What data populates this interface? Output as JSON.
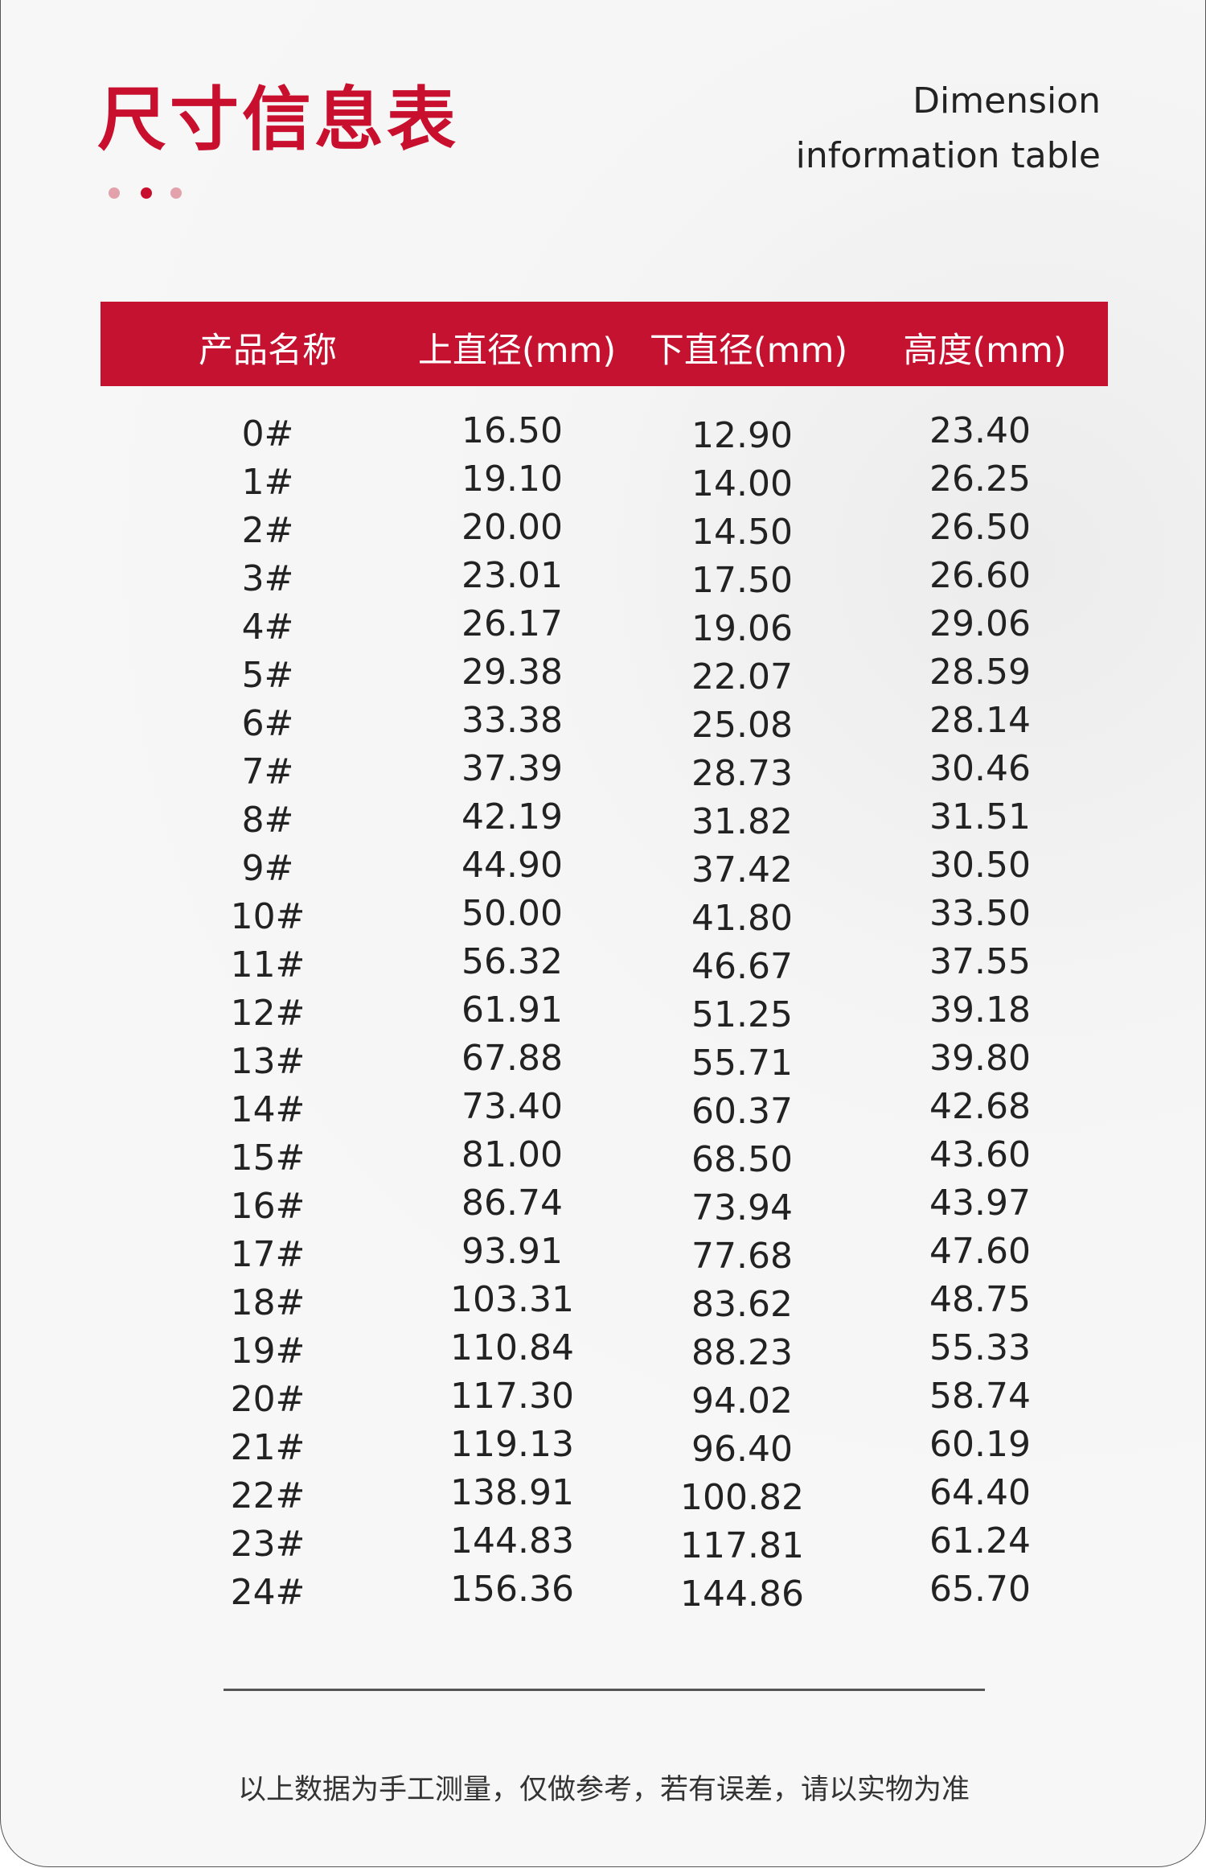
{
  "header": {
    "title": "尺寸信息表",
    "subtitle_line1": "Dimension",
    "subtitle_line2": "information table"
  },
  "colors": {
    "accent": "#c41230",
    "dot_light": "#e3a1ac"
  },
  "table": {
    "columns": [
      "产品名称",
      "上直径(mm)",
      "下直径(mm)",
      "高度(mm)"
    ],
    "rows": [
      [
        "0#",
        "16.50",
        "12.90",
        "23.40"
      ],
      [
        "1#",
        "19.10",
        "14.00",
        "26.25"
      ],
      [
        "2#",
        "20.00",
        "14.50",
        "26.50"
      ],
      [
        "3#",
        "23.01",
        "17.50",
        "26.60"
      ],
      [
        "4#",
        "26.17",
        "19.06",
        "29.06"
      ],
      [
        "5#",
        "29.38",
        "22.07",
        "28.59"
      ],
      [
        "6#",
        "33.38",
        "25.08",
        "28.14"
      ],
      [
        "7#",
        "37.39",
        "28.73",
        "30.46"
      ],
      [
        "8#",
        "42.19",
        "31.82",
        "31.51"
      ],
      [
        "9#",
        "44.90",
        "37.42",
        "30.50"
      ],
      [
        "10#",
        "50.00",
        "41.80",
        "33.50"
      ],
      [
        "11#",
        "56.32",
        "46.67",
        "37.55"
      ],
      [
        "12#",
        "61.91",
        "51.25",
        "39.18"
      ],
      [
        "13#",
        "67.88",
        "55.71",
        "39.80"
      ],
      [
        "14#",
        "73.40",
        "60.37",
        "42.68"
      ],
      [
        "15#",
        "81.00",
        "68.50",
        "43.60"
      ],
      [
        "16#",
        "86.74",
        "73.94",
        "43.97"
      ],
      [
        "17#",
        "93.91",
        "77.68",
        "47.60"
      ],
      [
        "18#",
        "103.31",
        "83.62",
        "48.75"
      ],
      [
        "19#",
        "110.84",
        "88.23",
        "55.33"
      ],
      [
        "20#",
        "117.30",
        "94.02",
        "58.74"
      ],
      [
        "21#",
        "119.13",
        "96.40",
        "60.19"
      ],
      [
        "22#",
        "138.91",
        "100.82",
        "64.40"
      ],
      [
        "23#",
        "144.83",
        "117.81",
        "61.24"
      ],
      [
        "24#",
        "156.36",
        "144.86",
        "65.70"
      ]
    ]
  },
  "footer": {
    "note": "以上数据为手工测量，仅做参考，若有误差，请以实物为准"
  }
}
